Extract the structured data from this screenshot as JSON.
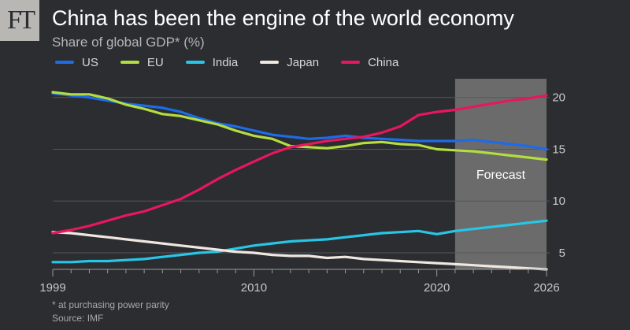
{
  "logo": {
    "text": "FT"
  },
  "chart_data": {
    "type": "line",
    "title": "China has been the engine of the world economy",
    "subtitle": "Share of global GDP* (%)",
    "x_ticks": [
      1999,
      2010,
      2020,
      2026
    ],
    "xlim": [
      1999,
      2026
    ],
    "y_ticks": [
      5,
      10,
      15,
      20
    ],
    "ylim": [
      3.4,
      21.5
    ],
    "grid": "horizontal",
    "legend_position": "top-left",
    "forecast": {
      "label": "Forecast",
      "start": 2021,
      "end": 2026
    },
    "series": [
      {
        "name": "US",
        "color": "#1e6be8",
        "x": [
          1999,
          2000,
          2001,
          2002,
          2003,
          2004,
          2005,
          2006,
          2007,
          2008,
          2009,
          2010,
          2011,
          2012,
          2013,
          2014,
          2015,
          2016,
          2017,
          2018,
          2019,
          2020,
          2021,
          2022,
          2023,
          2024,
          2025,
          2026
        ],
        "y": [
          20.4,
          20.2,
          20.0,
          19.7,
          19.4,
          19.2,
          19.0,
          18.6,
          18.0,
          17.5,
          17.2,
          16.8,
          16.4,
          16.2,
          16.0,
          16.1,
          16.3,
          16.1,
          16.0,
          15.9,
          15.8,
          15.8,
          15.8,
          15.9,
          15.7,
          15.5,
          15.3,
          15.0
        ]
      },
      {
        "name": "EU",
        "color": "#b3dd40",
        "x": [
          1999,
          2000,
          2001,
          2002,
          2003,
          2004,
          2005,
          2006,
          2007,
          2008,
          2009,
          2010,
          2011,
          2012,
          2013,
          2014,
          2015,
          2016,
          2017,
          2018,
          2019,
          2020,
          2021,
          2022,
          2023,
          2024,
          2025,
          2026
        ],
        "y": [
          20.5,
          20.3,
          20.3,
          19.9,
          19.3,
          18.9,
          18.4,
          18.2,
          17.8,
          17.4,
          16.8,
          16.3,
          16.0,
          15.3,
          15.2,
          15.1,
          15.3,
          15.6,
          15.7,
          15.5,
          15.4,
          15.0,
          14.9,
          14.8,
          14.6,
          14.4,
          14.2,
          14.0
        ]
      },
      {
        "name": "India",
        "color": "#27c6e6",
        "x": [
          1999,
          2000,
          2001,
          2002,
          2003,
          2004,
          2005,
          2006,
          2007,
          2008,
          2009,
          2010,
          2011,
          2012,
          2013,
          2014,
          2015,
          2016,
          2017,
          2018,
          2019,
          2020,
          2021,
          2022,
          2023,
          2024,
          2025,
          2026
        ],
        "y": [
          4.1,
          4.1,
          4.2,
          4.2,
          4.3,
          4.4,
          4.6,
          4.8,
          5.0,
          5.1,
          5.4,
          5.7,
          5.9,
          6.1,
          6.2,
          6.3,
          6.5,
          6.7,
          6.9,
          7.0,
          7.1,
          6.8,
          7.1,
          7.3,
          7.5,
          7.7,
          7.9,
          8.1
        ]
      },
      {
        "name": "Japan",
        "color": "#efe7e0",
        "x": [
          1999,
          2000,
          2001,
          2002,
          2003,
          2004,
          2005,
          2006,
          2007,
          2008,
          2009,
          2010,
          2011,
          2012,
          2013,
          2014,
          2015,
          2016,
          2017,
          2018,
          2019,
          2020,
          2021,
          2022,
          2023,
          2024,
          2025,
          2026
        ],
        "y": [
          7.0,
          6.9,
          6.7,
          6.5,
          6.3,
          6.1,
          5.9,
          5.7,
          5.5,
          5.3,
          5.1,
          5.0,
          4.8,
          4.7,
          4.7,
          4.5,
          4.6,
          4.4,
          4.3,
          4.2,
          4.1,
          4.0,
          3.9,
          3.8,
          3.7,
          3.6,
          3.5,
          3.4
        ]
      },
      {
        "name": "China",
        "color": "#e8175d",
        "x": [
          1999,
          2000,
          2001,
          2002,
          2003,
          2004,
          2005,
          2006,
          2007,
          2008,
          2009,
          2010,
          2011,
          2012,
          2013,
          2014,
          2015,
          2016,
          2017,
          2018,
          2019,
          2020,
          2021,
          2022,
          2023,
          2024,
          2025,
          2026
        ],
        "y": [
          6.9,
          7.2,
          7.6,
          8.1,
          8.6,
          9.0,
          9.6,
          10.2,
          11.1,
          12.1,
          13.0,
          13.8,
          14.6,
          15.2,
          15.5,
          15.8,
          16.0,
          16.2,
          16.6,
          17.2,
          18.3,
          18.6,
          18.8,
          19.1,
          19.4,
          19.7,
          19.9,
          20.2
        ]
      }
    ]
  },
  "footnote": {
    "note": "* at purchasing power parity",
    "source": "Source: IMF"
  }
}
